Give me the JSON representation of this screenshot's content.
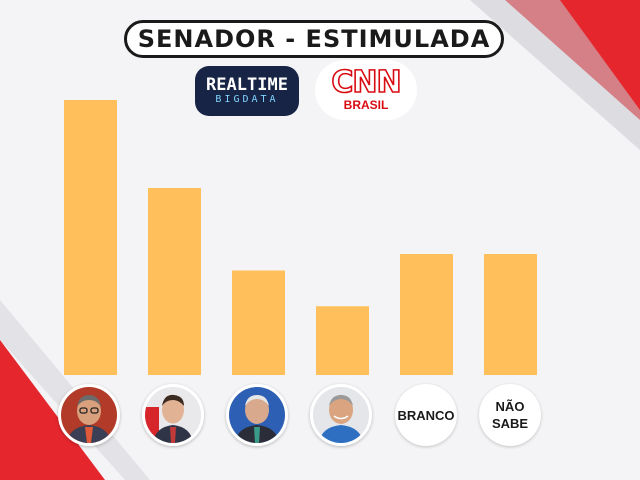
{
  "header": {
    "title": "SENADOR - ESTIMULADA"
  },
  "logos": {
    "realtime": {
      "line1": "REALTIME",
      "line2": "BIGDATA"
    },
    "cnn": {
      "line1": "CNN",
      "line2": "BRASIL"
    }
  },
  "colors": {
    "bar": "#ffbf5a",
    "background": "#f4f4f6",
    "accent_red": "#e0141c",
    "logo_navy": "#172446"
  },
  "chart_data": {
    "type": "bar",
    "title": "SENADOR - ESTIMULADA",
    "categories": [
      "candidate-1",
      "candidate-2",
      "candidate-3",
      "candidate-4",
      "BRANCO",
      "NÃO SABE"
    ],
    "values": [
      100,
      68,
      38,
      25,
      44,
      44
    ],
    "ylim": [
      0,
      100
    ],
    "value_note_hidden": true,
    "grid": false,
    "legend": "none",
    "category_display": [
      {
        "kind": "photo",
        "icon": "candidate-1-photo"
      },
      {
        "kind": "photo",
        "icon": "candidate-2-photo"
      },
      {
        "kind": "photo",
        "icon": "candidate-3-photo"
      },
      {
        "kind": "photo",
        "icon": "candidate-4-photo"
      },
      {
        "kind": "text",
        "label": "BRANCO"
      },
      {
        "kind": "text",
        "label": "NÃO\nSABE"
      }
    ]
  }
}
